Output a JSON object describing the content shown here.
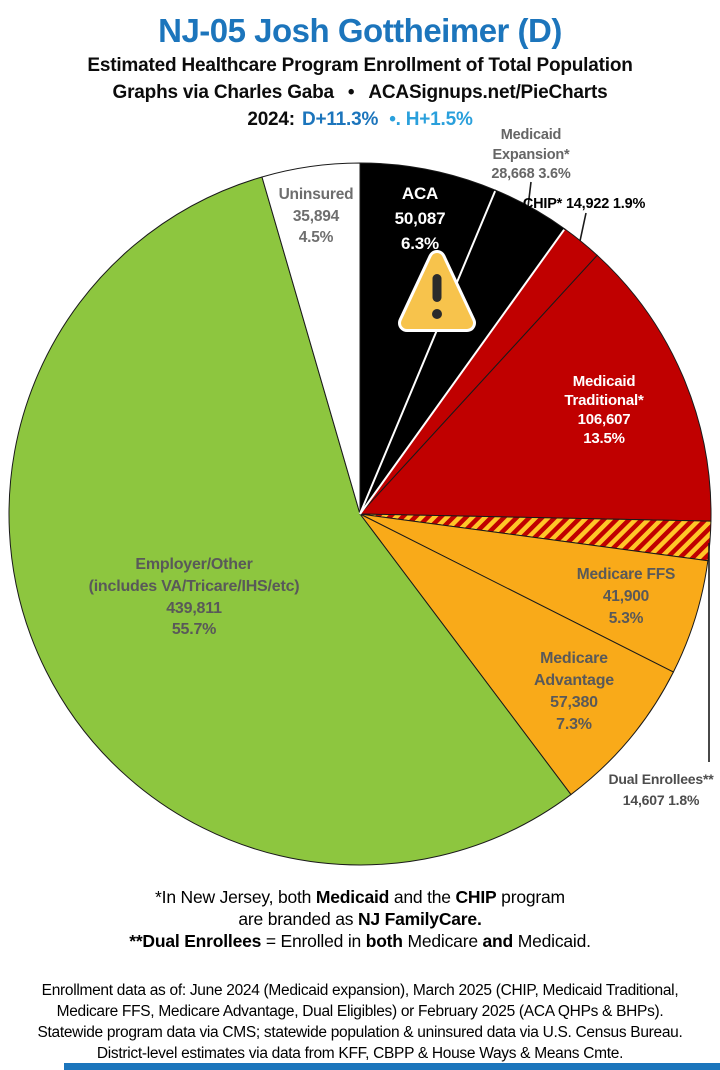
{
  "header": {
    "title": "NJ-05 Josh Gottheimer (D)",
    "subtitle": "Estimated Healthcare Program Enrollment of Total Population",
    "credit_author": "Graphs via Charles Gaba",
    "credit_bullet": "•",
    "credit_site": "ACASignups.net/PieCharts",
    "year_label": "2024:",
    "d_lean": "D+11.3%",
    "lean_sep": "•.",
    "h_lean": "H+1.5%"
  },
  "colors": {
    "page_bg": "#FFFFFF",
    "title_blue": "#1C75BC",
    "d_blue": "#1C75BC",
    "h_blue": "#2AA0DC",
    "bottom_bar": "#1B75BC",
    "slice_stroke": "#1a1a1a",
    "hatch_yellow": "#FFC628",
    "hatch_red": "#C00000",
    "warning_yellow": "#F7C34C"
  },
  "chart_data": {
    "type": "pie",
    "title": "NJ-05 Josh Gottheimer (D)",
    "subtitle": "Estimated Healthcare Program Enrollment of Total Population",
    "start_angle_deg": -90,
    "direction": "clockwise",
    "slices": [
      {
        "name": "ACA",
        "value": 50087,
        "pct": 6.3,
        "color": "#000000",
        "label_color": "#ffffff",
        "label_lines": [
          "ACA",
          "50,087",
          "6.3%"
        ]
      },
      {
        "name": "Medicaid Expansion*",
        "value": 28668,
        "pct": 3.6,
        "color": "#000000",
        "label_color": "#666666",
        "label_lines": [
          "Medicaid",
          "Expansion*",
          "28,668 3.6%"
        ]
      },
      {
        "name": "CHIP*",
        "value": 14922,
        "pct": 1.9,
        "color": "#C00000",
        "label_color": "#000000",
        "label_lines": [
          "CHIP* 14,922 1.9%"
        ]
      },
      {
        "name": "Medicaid Traditional*",
        "value": 106607,
        "pct": 13.5,
        "color": "#C00000",
        "label_color": "#ffffff",
        "label_lines": [
          "Medicaid",
          "Traditional*",
          "106,607",
          "13.5%"
        ]
      },
      {
        "name": "Dual Enrollees**",
        "value": 14607,
        "pct": 1.8,
        "color": "hatch",
        "label_color": "#4d4d4d",
        "label_lines": [
          "Dual Enrollees**",
          "14,607 1.8%"
        ]
      },
      {
        "name": "Medicare FFS",
        "value": 41900,
        "pct": 5.3,
        "color": "#F9AA19",
        "label_color": "#595959",
        "label_lines": [
          "Medicare FFS",
          "41,900",
          "5.3%"
        ]
      },
      {
        "name": "Medicare Advantage",
        "value": 57380,
        "pct": 7.3,
        "color": "#F9AA19",
        "label_color": "#595959",
        "label_lines": [
          "Medicare",
          "Advantage",
          "57,380",
          "7.3%"
        ]
      },
      {
        "name": "Employer/Other",
        "value": 439811,
        "pct": 55.7,
        "color": "#8DC63F",
        "label_color": "#595959",
        "label_lines": [
          "Employer/Other",
          "(includes VA/Tricare/IHS/etc)",
          "439,811",
          "55.7%"
        ]
      },
      {
        "name": "Uninsured",
        "value": 35894,
        "pct": 4.5,
        "color": "#FFFFFF",
        "label_color": "#6e6e6e",
        "label_lines": [
          "Uninsured",
          "35,894",
          "4.5%"
        ]
      }
    ],
    "white_dividers_after_slices": [
      0,
      1
    ],
    "legend": "none",
    "annotations": [
      "warning-icon on ACA slice"
    ]
  },
  "footnote": {
    "l1s1": "*In New Jersey, both ",
    "l1s2": "Medicaid",
    "l1s3": " and the ",
    "l1s4": "CHIP",
    "l1s5": " program",
    "l2s1": "are branded as ",
    "l2s2": "NJ FamilyCare.",
    "l3s1": "**Dual Enrollees",
    "l3s2": " = Enrolled in ",
    "l3s3": "both",
    "l3s4": " Medicare ",
    "l3s5": "and",
    "l3s6": " Medicaid."
  },
  "source": {
    "line1": "Enrollment data as of: June 2024 (Medicaid expansion), March 2025 (CHIP, Medicaid Traditional,",
    "line2": "Medicare FFS, Medicare Advantage, Dual Eligibles) or February 2025 (ACA QHPs & BHPs).",
    "line3": "Statewide program data via CMS; statewide population & uninsured data via U.S. Census Bureau.",
    "line4": "District-level estimates via data from KFF, CBPP & House Ways & Means Cmte."
  }
}
